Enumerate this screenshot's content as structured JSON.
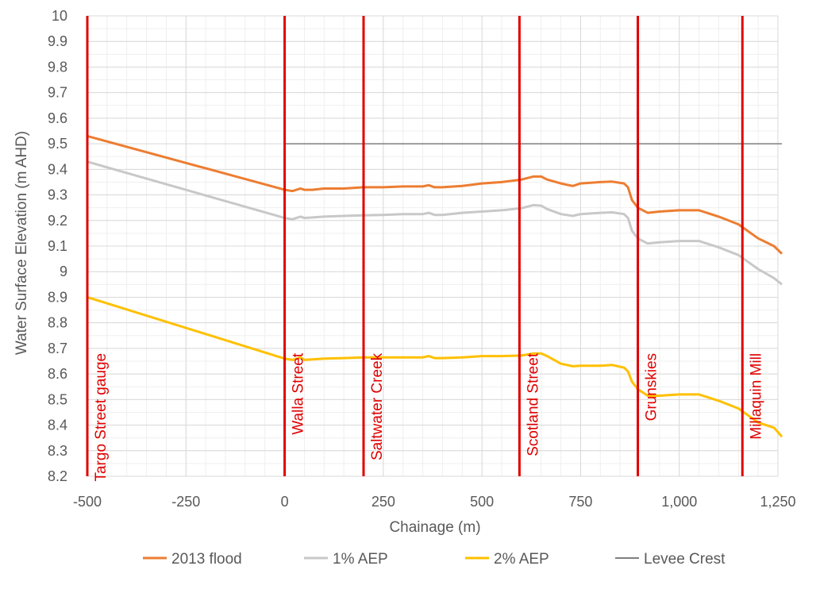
{
  "chart_data": {
    "type": "line",
    "title": "",
    "xlabel": "Chainage (m)",
    "ylabel": "Water Surface Elevation (m AHD)",
    "xlim": [
      -500,
      1250
    ],
    "ylim": [
      8.2,
      10
    ],
    "x_ticks": [
      {
        "value": -500,
        "label": "-500"
      },
      {
        "value": -250,
        "label": "-250"
      },
      {
        "value": 0,
        "label": "0"
      },
      {
        "value": 250,
        "label": "250"
      },
      {
        "value": 500,
        "label": "500"
      },
      {
        "value": 750,
        "label": "750"
      },
      {
        "value": 1000,
        "label": "1,000"
      },
      {
        "value": 1250,
        "label": "1,250"
      }
    ],
    "y_ticks": [
      {
        "value": 8.2,
        "label": "8.2"
      },
      {
        "value": 8.3,
        "label": "8.3"
      },
      {
        "value": 8.4,
        "label": "8.4"
      },
      {
        "value": 8.5,
        "label": "8.5"
      },
      {
        "value": 8.6,
        "label": "8.6"
      },
      {
        "value": 8.7,
        "label": "8.7"
      },
      {
        "value": 8.8,
        "label": "8.8"
      },
      {
        "value": 8.9,
        "label": "8.9"
      },
      {
        "value": 9,
        "label": "9"
      },
      {
        "value": 9.1,
        "label": "9.1"
      },
      {
        "value": 9.2,
        "label": "9.2"
      },
      {
        "value": 9.3,
        "label": "9.3"
      },
      {
        "value": 9.4,
        "label": "9.4"
      },
      {
        "value": 9.5,
        "label": "9.5"
      },
      {
        "value": 9.6,
        "label": "9.6"
      },
      {
        "value": 9.7,
        "label": "9.7"
      },
      {
        "value": 9.8,
        "label": "9.8"
      },
      {
        "value": 9.9,
        "label": "9.9"
      },
      {
        "value": 10,
        "label": "10"
      }
    ],
    "grid": true,
    "legend": "bottom",
    "series": [
      {
        "name": "2013 flood",
        "color": "#ED7D31",
        "points": [
          [
            -500,
            9.53
          ],
          [
            0,
            9.32
          ],
          [
            20,
            9.315
          ],
          [
            40,
            9.325
          ],
          [
            50,
            9.32
          ],
          [
            70,
            9.32
          ],
          [
            100,
            9.325
          ],
          [
            150,
            9.325
          ],
          [
            200,
            9.33
          ],
          [
            250,
            9.33
          ],
          [
            300,
            9.333
          ],
          [
            350,
            9.333
          ],
          [
            365,
            9.338
          ],
          [
            380,
            9.33
          ],
          [
            400,
            9.33
          ],
          [
            450,
            9.335
          ],
          [
            500,
            9.345
          ],
          [
            550,
            9.35
          ],
          [
            600,
            9.36
          ],
          [
            630,
            9.372
          ],
          [
            650,
            9.372
          ],
          [
            665,
            9.36
          ],
          [
            700,
            9.345
          ],
          [
            730,
            9.335
          ],
          [
            750,
            9.345
          ],
          [
            800,
            9.35
          ],
          [
            830,
            9.352
          ],
          [
            860,
            9.345
          ],
          [
            870,
            9.33
          ],
          [
            880,
            9.28
          ],
          [
            895,
            9.25
          ],
          [
            920,
            9.23
          ],
          [
            950,
            9.235
          ],
          [
            1000,
            9.24
          ],
          [
            1050,
            9.24
          ],
          [
            1060,
            9.235
          ],
          [
            1100,
            9.215
          ],
          [
            1150,
            9.185
          ],
          [
            1200,
            9.13
          ],
          [
            1240,
            9.1
          ],
          [
            1260,
            9.07
          ]
        ]
      },
      {
        "name": "1% AEP",
        "color": "#C8C8C8",
        "points": [
          [
            -500,
            9.43
          ],
          [
            0,
            9.21
          ],
          [
            20,
            9.205
          ],
          [
            40,
            9.215
          ],
          [
            50,
            9.21
          ],
          [
            100,
            9.215
          ],
          [
            150,
            9.218
          ],
          [
            200,
            9.22
          ],
          [
            250,
            9.222
          ],
          [
            300,
            9.225
          ],
          [
            350,
            9.225
          ],
          [
            365,
            9.23
          ],
          [
            380,
            9.222
          ],
          [
            400,
            9.222
          ],
          [
            450,
            9.23
          ],
          [
            500,
            9.235
          ],
          [
            550,
            9.24
          ],
          [
            600,
            9.248
          ],
          [
            630,
            9.26
          ],
          [
            650,
            9.258
          ],
          [
            665,
            9.245
          ],
          [
            700,
            9.225
          ],
          [
            730,
            9.218
          ],
          [
            750,
            9.225
          ],
          [
            800,
            9.23
          ],
          [
            830,
            9.232
          ],
          [
            860,
            9.225
          ],
          [
            870,
            9.21
          ],
          [
            880,
            9.16
          ],
          [
            895,
            9.13
          ],
          [
            920,
            9.11
          ],
          [
            950,
            9.115
          ],
          [
            1000,
            9.12
          ],
          [
            1050,
            9.12
          ],
          [
            1060,
            9.115
          ],
          [
            1100,
            9.095
          ],
          [
            1150,
            9.065
          ],
          [
            1200,
            9.01
          ],
          [
            1240,
            8.975
          ],
          [
            1260,
            8.95
          ]
        ]
      },
      {
        "name": "2% AEP",
        "color": "#FFC000",
        "points": [
          [
            -500,
            8.9
          ],
          [
            0,
            8.66
          ],
          [
            20,
            8.655
          ],
          [
            40,
            8.665
          ],
          [
            50,
            8.655
          ],
          [
            100,
            8.66
          ],
          [
            150,
            8.662
          ],
          [
            200,
            8.665
          ],
          [
            250,
            8.665
          ],
          [
            300,
            8.665
          ],
          [
            350,
            8.665
          ],
          [
            365,
            8.67
          ],
          [
            380,
            8.662
          ],
          [
            400,
            8.662
          ],
          [
            450,
            8.665
          ],
          [
            500,
            8.67
          ],
          [
            550,
            8.67
          ],
          [
            600,
            8.672
          ],
          [
            630,
            8.68
          ],
          [
            650,
            8.68
          ],
          [
            665,
            8.67
          ],
          [
            700,
            8.64
          ],
          [
            730,
            8.63
          ],
          [
            750,
            8.632
          ],
          [
            800,
            8.632
          ],
          [
            830,
            8.635
          ],
          [
            860,
            8.625
          ],
          [
            870,
            8.61
          ],
          [
            880,
            8.57
          ],
          [
            895,
            8.54
          ],
          [
            920,
            8.515
          ],
          [
            950,
            8.515
          ],
          [
            1000,
            8.52
          ],
          [
            1050,
            8.52
          ],
          [
            1060,
            8.515
          ],
          [
            1100,
            8.495
          ],
          [
            1150,
            8.465
          ],
          [
            1200,
            8.41
          ],
          [
            1240,
            8.39
          ],
          [
            1260,
            8.355
          ]
        ]
      },
      {
        "name": "Levee Crest",
        "color": "#7F7F7F",
        "points": [
          [
            0,
            9.5
          ],
          [
            1260,
            9.5
          ]
        ]
      }
    ],
    "annotations": [
      {
        "label": "Targo Street gauge",
        "x": -500,
        "y": 8.9
      },
      {
        "label": "Walla Street",
        "x": 0,
        "y": 8.9
      },
      {
        "label": "Saltwater Creek",
        "x": 200,
        "y": 8.9
      },
      {
        "label": "Scotland Street",
        "x": 595,
        "y": 8.9
      },
      {
        "label": "Grunskies",
        "x": 895,
        "y": 8.9
      },
      {
        "label": "Millaquin Mill",
        "x": 1160,
        "y": 8.9
      }
    ],
    "vline_color": "#E00000"
  }
}
